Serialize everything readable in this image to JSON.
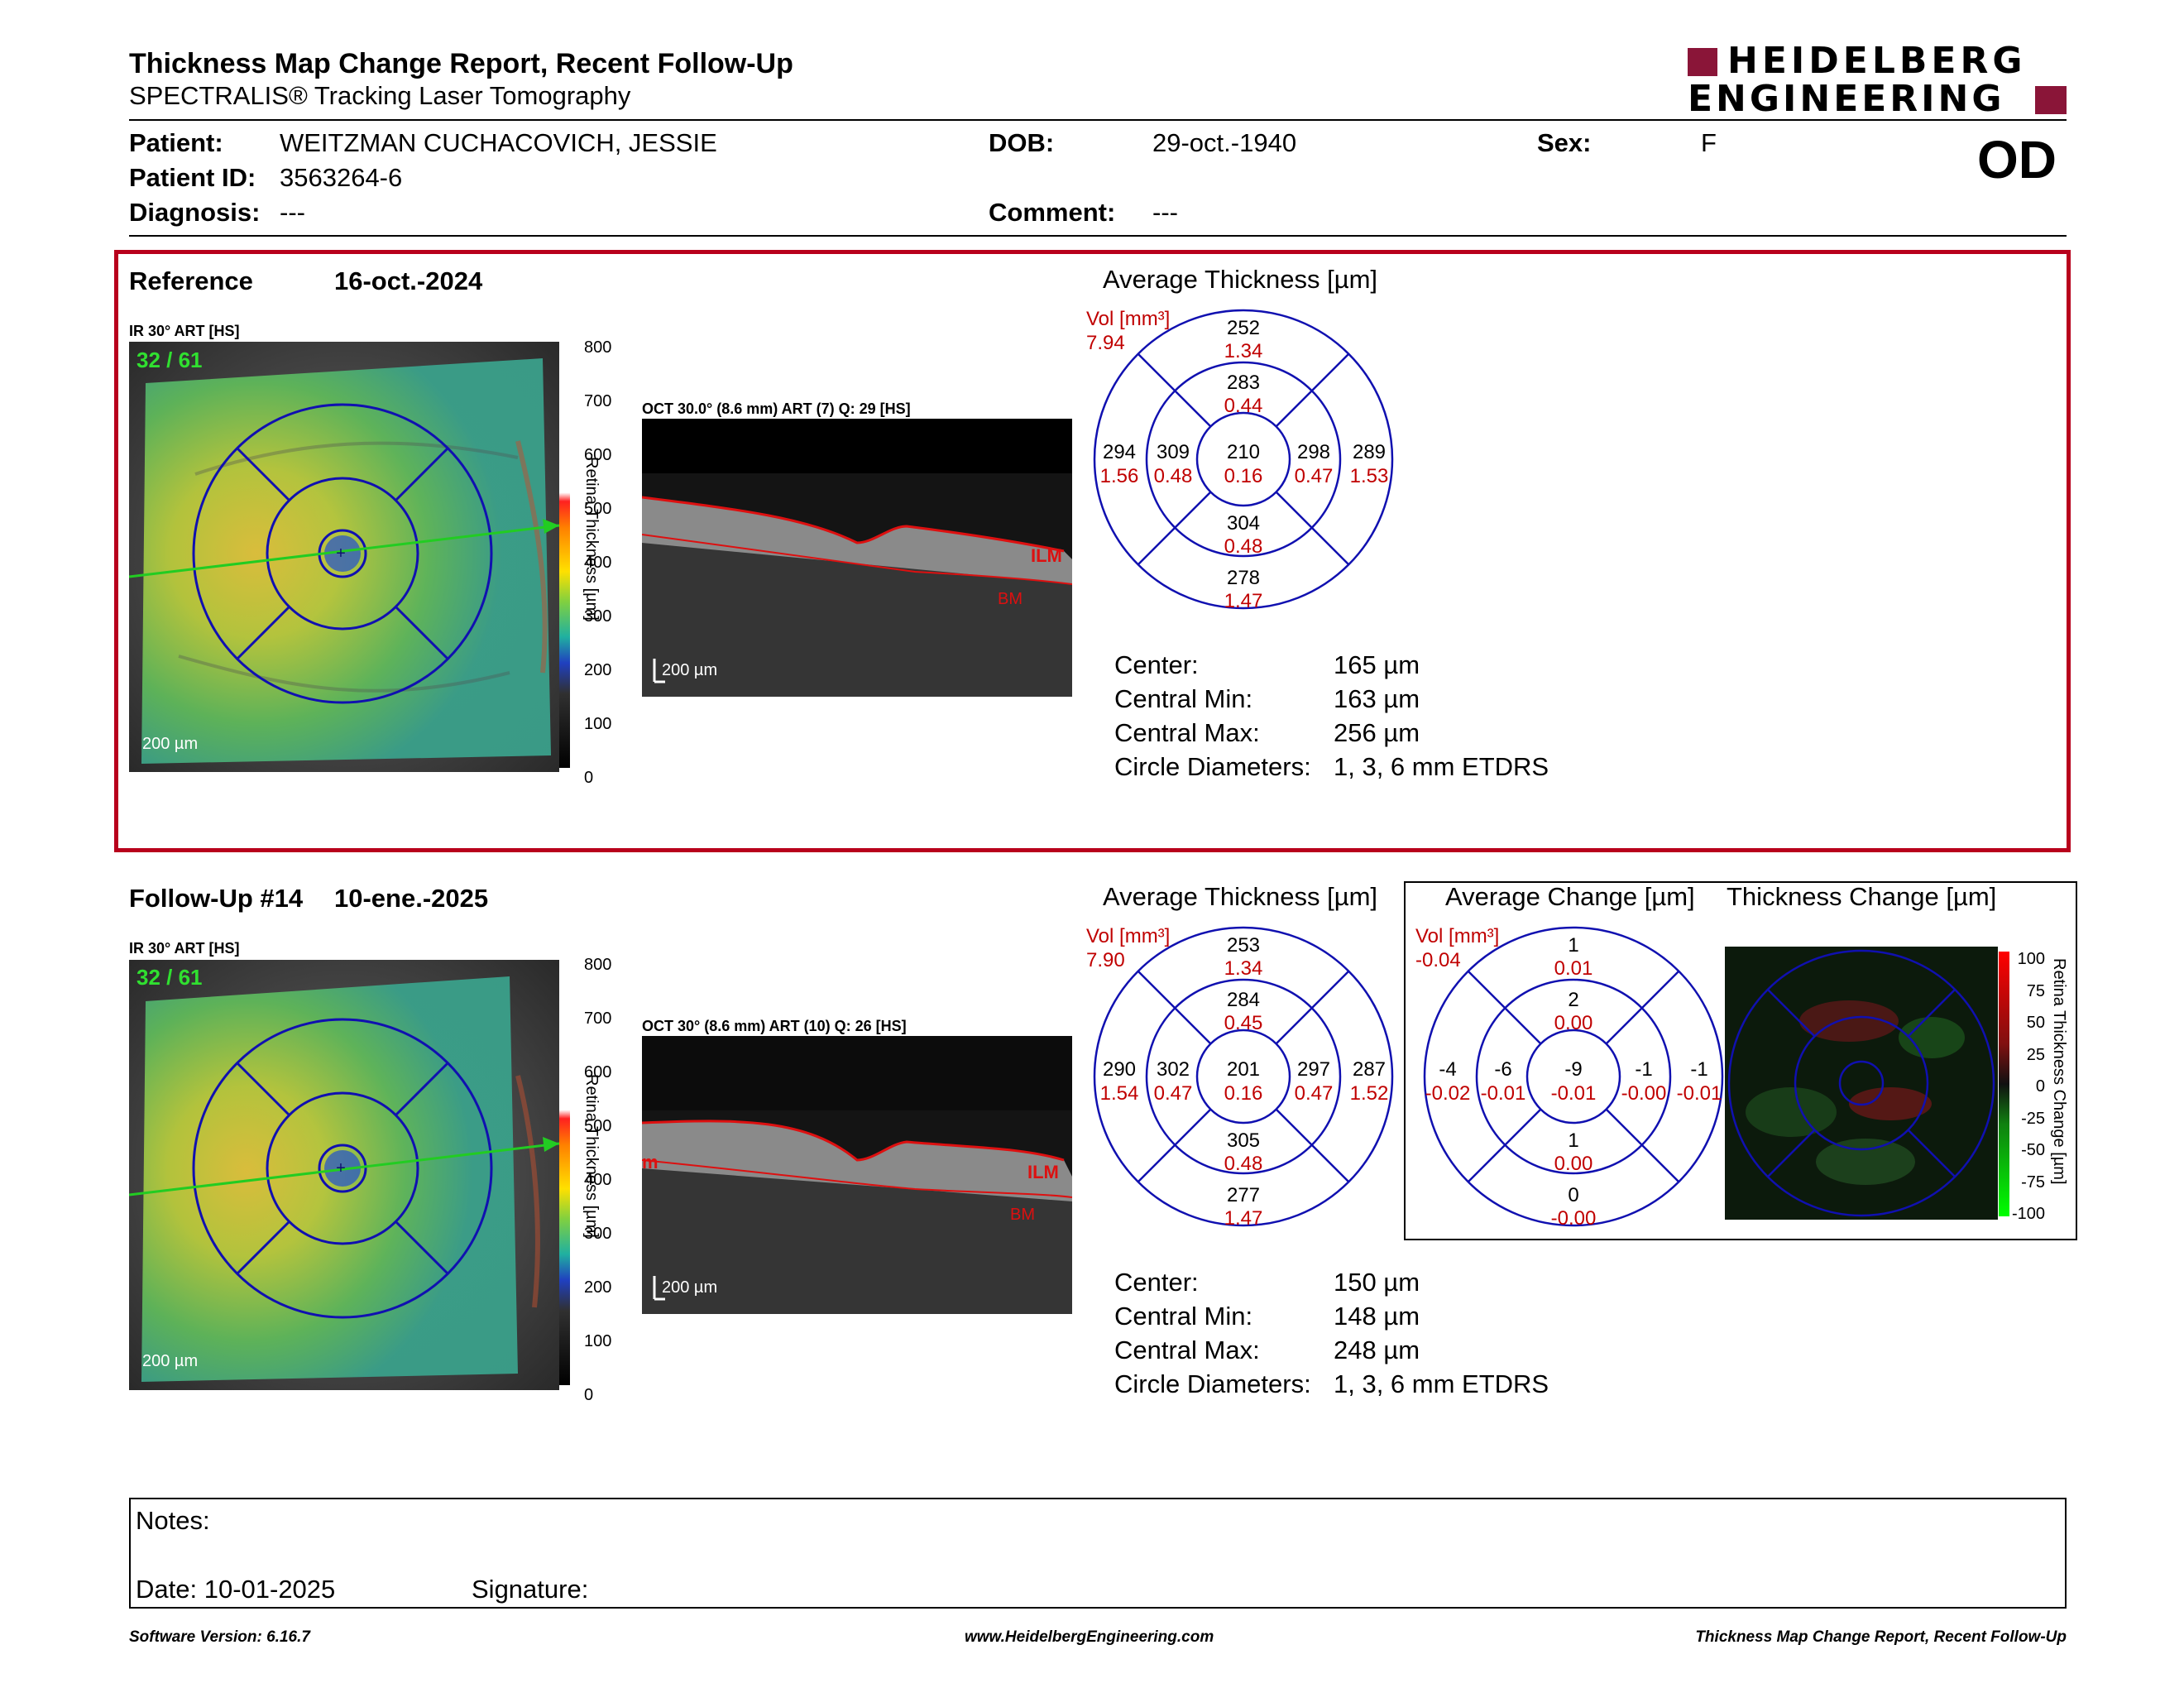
{
  "header": {
    "title": "Thickness Map Change Report, Recent Follow-Up",
    "subtitle": "SPECTRALIS® Tracking Laser Tomography",
    "logo_line1": "HEIDELBERG",
    "logo_line2": "ENGINEERING",
    "eye": "OD",
    "brand_color": "#8a1538"
  },
  "patient": {
    "patient_label": "Patient:",
    "patient_name": "WEITZMAN CUCHACOVICH, JESSIE",
    "dob_label": "DOB:",
    "dob": "29-oct.-1940",
    "sex_label": "Sex:",
    "sex": "F",
    "id_label": "Patient ID:",
    "id": "3563264-6",
    "diagnosis_label": "Diagnosis:",
    "diagnosis": "---",
    "comment_label": "Comment:",
    "comment": "---"
  },
  "reference": {
    "label": "Reference",
    "date": "16-oct.-2024",
    "ir_label": "IR 30° ART [HS]",
    "counter": "32 / 61",
    "scale": "200 µm",
    "oct_label": "OCT 30.0° (8.6 mm) ART (7) Q: 29 [HS]",
    "oct_scale": "200 µm",
    "ilm": "ILM",
    "bm": "BM",
    "colorbar_ticks": [
      "800",
      "700",
      "600",
      "500",
      "400",
      "300",
      "200",
      "100",
      "0"
    ],
    "colorbar_label": "Retina Thickness [µm]",
    "avg_title": "Average Thickness [µm]",
    "vol_label": "Vol [mm³]",
    "vol": "7.94",
    "etdrs": {
      "outer_sup": [
        "252",
        "1.34"
      ],
      "inner_sup": [
        "283",
        "0.44"
      ],
      "outer_temp": [
        "294",
        "1.56"
      ],
      "inner_temp": [
        "309",
        "0.48"
      ],
      "center": [
        "210",
        "0.16"
      ],
      "inner_nas": [
        "298",
        "0.47"
      ],
      "outer_nas": [
        "289",
        "1.53"
      ],
      "inner_inf": [
        "304",
        "0.48"
      ],
      "outer_inf": [
        "278",
        "1.47"
      ]
    },
    "stats": [
      {
        "label": "Center:",
        "value": "165 µm"
      },
      {
        "label": "Central Min:",
        "value": "163 µm"
      },
      {
        "label": "Central Max:",
        "value": "256 µm"
      },
      {
        "label": "Circle Diameters:",
        "value": "1, 3, 6 mm ETDRS"
      }
    ]
  },
  "followup": {
    "label": "Follow-Up #14",
    "date": "10-ene.-2025",
    "ir_label": "IR 30° ART [HS]",
    "counter": "32 / 61",
    "scale": "200 µm",
    "oct_label": "OCT 30° (8.6 mm) ART (10) Q: 26 [HS]",
    "oct_scale": "200 µm",
    "ilm": "ILM",
    "bm": "BM",
    "edge_mark": "m",
    "colorbar_ticks": [
      "800",
      "700",
      "600",
      "500",
      "400",
      "300",
      "200",
      "100",
      "0"
    ],
    "colorbar_label": "Retina Thickness [µm]",
    "avg_title": "Average Thickness [µm]",
    "vol_label": "Vol [mm³]",
    "vol": "7.90",
    "etdrs": {
      "outer_sup": [
        "253",
        "1.34"
      ],
      "inner_sup": [
        "284",
        "0.45"
      ],
      "outer_temp": [
        "290",
        "1.54"
      ],
      "inner_temp": [
        "302",
        "0.47"
      ],
      "center": [
        "201",
        "0.16"
      ],
      "inner_nas": [
        "297",
        "0.47"
      ],
      "outer_nas": [
        "287",
        "1.52"
      ],
      "inner_inf": [
        "305",
        "0.48"
      ],
      "outer_inf": [
        "277",
        "1.47"
      ]
    },
    "stats": [
      {
        "label": "Center:",
        "value": "150 µm"
      },
      {
        "label": "Central Min:",
        "value": "148 µm"
      },
      {
        "label": "Central Max:",
        "value": "248 µm"
      },
      {
        "label": "Circle Diameters:",
        "value": "1, 3, 6 mm ETDRS"
      }
    ]
  },
  "change": {
    "avg_title": "Average Change [µm]",
    "map_title": "Thickness Change [µm]",
    "vol_label": "Vol [mm³]",
    "vol": "-0.04",
    "etdrs": {
      "outer_sup": [
        "1",
        "0.01"
      ],
      "inner_sup": [
        "2",
        "0.00"
      ],
      "outer_temp": [
        "-4",
        "-0.02"
      ],
      "inner_temp": [
        "-6",
        "-0.01"
      ],
      "center": [
        "-9",
        "-0.01"
      ],
      "inner_nas": [
        "-1",
        "-0.00"
      ],
      "outer_nas": [
        "-1",
        "-0.01"
      ],
      "inner_inf": [
        "1",
        "0.00"
      ],
      "outer_inf": [
        "0",
        "-0.00"
      ]
    },
    "colorbar_ticks": [
      "100",
      "75",
      "50",
      "25",
      "0",
      "-25",
      "-50",
      "-75",
      "-100"
    ],
    "colorbar_label": "Retina Thickness Change [µm]"
  },
  "notes": {
    "notes_label": "Notes:",
    "date_label": "Date: 10-01-2025",
    "signature_label": "Signature:"
  },
  "footer": {
    "version": "Software Version: 6.16.7",
    "website": "www.HeidelbergEngineering.com",
    "report": "Thickness Map Change Report, Recent Follow-Up"
  }
}
